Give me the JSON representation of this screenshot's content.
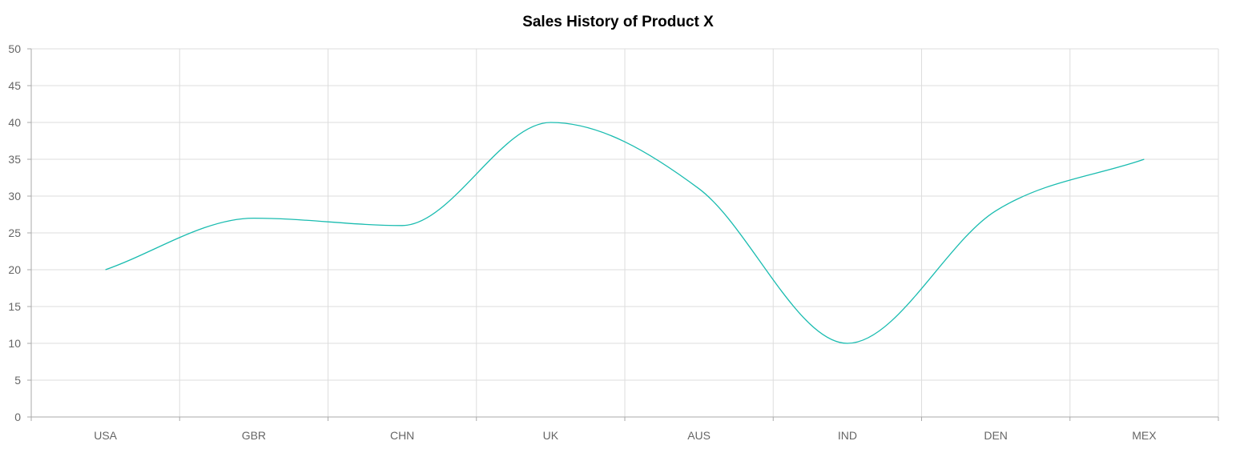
{
  "chart_data": {
    "type": "line",
    "title": "Sales History of Product X",
    "xlabel": "",
    "ylabel": "",
    "categories": [
      "USA",
      "GBR",
      "CHN",
      "UK",
      "AUS",
      "IND",
      "DEN",
      "MEX"
    ],
    "series": [
      {
        "values": [
          20,
          27,
          26,
          40,
          31,
          10,
          28,
          35
        ],
        "color": "#1abcb0",
        "curve": "smooth"
      }
    ],
    "ylim": [
      0,
      50
    ],
    "yticks": [
      "0",
      "5",
      "10",
      "15",
      "20",
      "25",
      "30",
      "35",
      "40",
      "45",
      "50"
    ],
    "grid": true,
    "legend": "none"
  },
  "colors": {
    "grid": "#dddddd",
    "axis": "#aaaaaa",
    "tick_text": "#666666",
    "line": "#1abcb0"
  }
}
